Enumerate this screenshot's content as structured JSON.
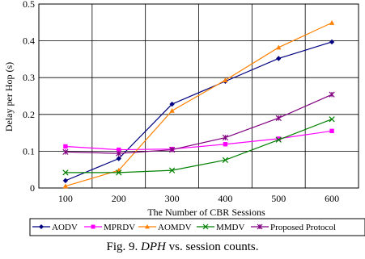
{
  "chart_data": {
    "type": "line",
    "xlabel": "The Number of CBR Sessions",
    "ylabel": "Delay per Hop (s)",
    "categories": [
      "100",
      "200",
      "300",
      "400",
      "500",
      "600"
    ],
    "ylim": [
      0,
      0.5
    ],
    "yticks": [
      "0",
      "0.1",
      "0.2",
      "0.3",
      "0.4",
      "0.5"
    ],
    "grid": true,
    "legend_position": "bottom",
    "series": [
      {
        "name": "AODV",
        "color": "#000080",
        "marker": "diamond",
        "values": [
          0.02,
          0.08,
          0.228,
          0.29,
          0.352,
          0.397
        ]
      },
      {
        "name": "MPRDV",
        "color": "#ff00ff",
        "marker": "square",
        "values": [
          0.113,
          0.104,
          0.106,
          0.119,
          0.134,
          0.155
        ]
      },
      {
        "name": "AOMDV",
        "color": "#ff8000",
        "marker": "triangle",
        "values": [
          0.005,
          0.048,
          0.21,
          0.293,
          0.382,
          0.449
        ]
      },
      {
        "name": "MMDV",
        "color": "#008000",
        "marker": "x",
        "values": [
          0.042,
          0.042,
          0.048,
          0.076,
          0.131,
          0.187
        ]
      },
      {
        "name": "Proposed Protocol",
        "color": "#800080",
        "marker": "asterisk",
        "values": [
          0.098,
          0.094,
          0.104,
          0.137,
          0.19,
          0.254
        ]
      }
    ]
  },
  "caption": {
    "prefix": "Fig. 9. ",
    "term": "DPH",
    "suffix": " vs. session counts."
  }
}
